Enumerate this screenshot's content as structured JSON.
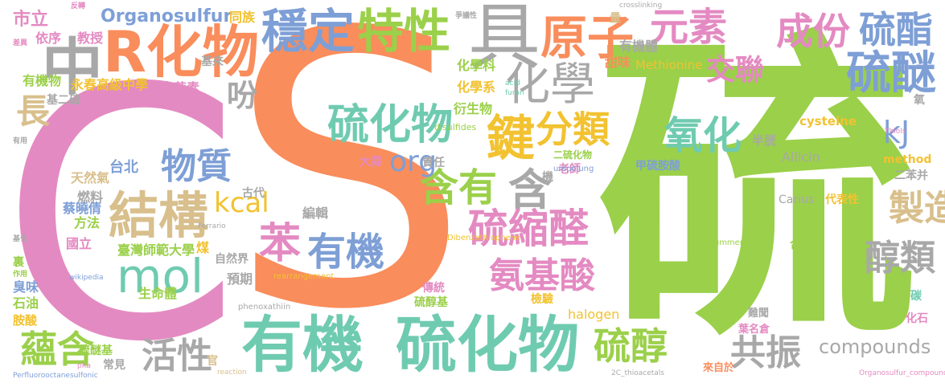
{
  "palette": {
    "green": "#9bd04a",
    "orange": "#f98d5c",
    "pink": "#e48ac2",
    "gray": "#a8a8a8",
    "blue": "#7e9fd6",
    "yellow": "#f2c230",
    "teal": "#6fcbb0",
    "tan": "#d8bf8c"
  },
  "words": [
    {
      "text": "硫",
      "color": "green"
    },
    {
      "text": "S",
      "color": "orange"
    },
    {
      "text": "C",
      "color": "pink"
    },
    {
      "text": "有機",
      "color": "teal"
    },
    {
      "text": "硫化物",
      "color": "teal"
    },
    {
      "text": "中",
      "color": "gray"
    },
    {
      "text": "R化物",
      "color": "orange"
    },
    {
      "text": "穩定",
      "color": "blue"
    },
    {
      "text": "特性",
      "color": "green"
    },
    {
      "text": "具",
      "color": "gray"
    },
    {
      "text": "原子",
      "color": "orange"
    },
    {
      "text": "元素",
      "color": "pink"
    },
    {
      "text": "成份",
      "color": "pink"
    },
    {
      "text": "硫酯",
      "color": "blue"
    },
    {
      "text": "硫醚",
      "color": "blue"
    },
    {
      "text": "化學",
      "color": "gray"
    },
    {
      "text": "交聯",
      "color": "pink"
    },
    {
      "text": "結構",
      "color": "tan"
    },
    {
      "text": "硫化物",
      "color": "teal"
    },
    {
      "text": "鍵",
      "color": "yellow"
    },
    {
      "text": "分類",
      "color": "yellow"
    },
    {
      "text": "氧化",
      "color": "teal"
    },
    {
      "text": "含有",
      "color": "green"
    },
    {
      "text": "含",
      "color": "gray"
    },
    {
      "text": "org",
      "color": "blue"
    },
    {
      "text": "kJ",
      "color": "blue"
    },
    {
      "text": "mol",
      "color": "teal"
    },
    {
      "text": "苯",
      "color": "pink"
    },
    {
      "text": "有機",
      "color": "blue"
    },
    {
      "text": "硫縮醛",
      "color": "pink"
    },
    {
      "text": "製造",
      "color": "tan"
    },
    {
      "text": "醇類",
      "color": "gray"
    },
    {
      "text": "氨基酸",
      "color": "pink"
    },
    {
      "text": "物質",
      "color": "blue"
    },
    {
      "text": "kcal",
      "color": "yellow"
    },
    {
      "text": "長",
      "color": "tan"
    },
    {
      "text": "吩",
      "color": "gray"
    },
    {
      "text": "蘊含",
      "color": "green"
    },
    {
      "text": "活性",
      "color": "gray"
    },
    {
      "text": "硫醇",
      "color": "green"
    },
    {
      "text": "共振",
      "color": "gray"
    },
    {
      "text": "compounds",
      "color": "gray"
    },
    {
      "text": "Organosulfur",
      "color": "blue"
    },
    {
      "text": "市立",
      "color": "pink"
    },
    {
      "text": "依序",
      "color": "pink"
    },
    {
      "text": "有機物",
      "color": "green"
    },
    {
      "text": "教授",
      "color": "pink"
    },
    {
      "text": "同族",
      "color": "yellow"
    },
    {
      "text": "化學科",
      "color": "green"
    },
    {
      "text": "化學系",
      "color": "yellow"
    },
    {
      "text": "永春高級中學",
      "color": "yellow"
    },
    {
      "text": "大蒜素",
      "color": "pink"
    },
    {
      "text": "衍生物",
      "color": "green"
    },
    {
      "text": "甜味",
      "color": "orange"
    },
    {
      "text": "Methionine",
      "color": "yellow"
    },
    {
      "text": "有機體",
      "color": "gray"
    },
    {
      "text": "半胱",
      "color": "gray"
    },
    {
      "text": "cysteine",
      "color": "yellow"
    },
    {
      "text": "Allicin",
      "color": "gray"
    },
    {
      "text": "method",
      "color": "yellow"
    },
    {
      "text": "二苯并",
      "color": "gray"
    },
    {
      "text": "甲硫胺酸",
      "color": "blue"
    },
    {
      "text": "二硫化物",
      "color": "green"
    },
    {
      "text": "燃料",
      "color": "gray"
    },
    {
      "text": "天然氣",
      "color": "tan"
    },
    {
      "text": "蔡曉倩",
      "color": "blue"
    },
    {
      "text": "方法",
      "color": "green"
    },
    {
      "text": "國立",
      "color": "pink"
    },
    {
      "text": "臺灣師範大學",
      "color": "green"
    },
    {
      "text": "自然界",
      "color": "gray"
    },
    {
      "text": "煤",
      "color": "yellow"
    },
    {
      "text": "預期",
      "color": "gray"
    },
    {
      "text": "生命體",
      "color": "green"
    },
    {
      "text": "臭味",
      "color": "blue"
    },
    {
      "text": "石油",
      "color": "green"
    },
    {
      "text": "胺酸",
      "color": "yellow"
    },
    {
      "text": "硫醇基",
      "color": "green"
    },
    {
      "text": "傳統",
      "color": "pink"
    },
    {
      "text": "檢驗",
      "color": "yellow"
    },
    {
      "text": "halogen",
      "color": "yellow"
    },
    {
      "text": "硫醚基",
      "color": "green"
    },
    {
      "text": "常見",
      "color": "gray"
    },
    {
      "text": "官",
      "color": "tan"
    },
    {
      "text": "編輯",
      "color": "gray"
    },
    {
      "text": "古代",
      "color": "gray"
    },
    {
      "text": "台北",
      "color": "blue"
    },
    {
      "text": "大蒜",
      "color": "pink"
    },
    {
      "text": "責任",
      "color": "gray"
    },
    {
      "text": "機",
      "color": "gray"
    },
    {
      "text": "老師",
      "color": "pink"
    },
    {
      "text": "Carius",
      "color": "gray"
    },
    {
      "text": "代表性",
      "color": "yellow"
    },
    {
      "text": "合物",
      "color": "green"
    },
    {
      "text": "難聞",
      "color": "gray"
    },
    {
      "text": "葉名倉",
      "color": "pink"
    },
    {
      "text": "來自於",
      "color": "orange"
    },
    {
      "text": "化石",
      "color": "pink"
    },
    {
      "text": "碳",
      "color": "teal"
    },
    {
      "text": "氧",
      "color": "gray"
    },
    {
      "text": "量",
      "color": "tan"
    },
    {
      "text": "基二硫",
      "color": "gray"
    },
    {
      "text": "基來",
      "color": "gray"
    },
    {
      "text": "裏",
      "color": "green"
    },
    {
      "text": "disulfides",
      "color": "green"
    },
    {
      "text": "Dibenzothiophene",
      "color": "yellow"
    },
    {
      "text": "phenoxathiin",
      "color": "gray"
    },
    {
      "text": "rearrangement",
      "color": "yellow"
    },
    {
      "text": "Perfluorooctanesulfonic",
      "color": "blue"
    },
    {
      "text": "Organosulfur_compound",
      "color": "pink"
    },
    {
      "text": "crosslinking",
      "color": "gray"
    },
    {
      "text": "umpolung",
      "color": "blue"
    },
    {
      "text": "Pummerer",
      "color": "green"
    },
    {
      "text": "Thiols",
      "color": "pink"
    },
    {
      "text": "furan",
      "color": "teal"
    },
    {
      "text": "acid",
      "color": "teal"
    },
    {
      "text": "reaction",
      "color": "tan"
    },
    {
      "text": "2C_thioacetals",
      "color": "gray"
    },
    {
      "text": "wikipedia",
      "color": "blue"
    },
    {
      "text": "Ferrario",
      "color": "gray"
    },
    {
      "text": "pKa",
      "color": "pink"
    },
    {
      "text": "反轉",
      "color": "pink"
    },
    {
      "text": "爭議性",
      "color": "gray"
    },
    {
      "text": "差異",
      "color": "pink"
    },
    {
      "text": "作用",
      "color": "green"
    },
    {
      "text": "基化",
      "color": "gray"
    },
    {
      "text": "有用",
      "color": "gray"
    }
  ]
}
